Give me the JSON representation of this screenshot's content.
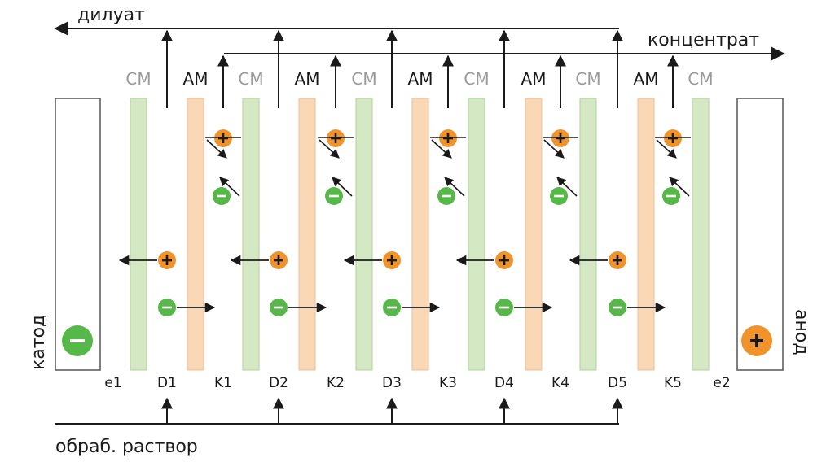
{
  "labels": {
    "diluate": "дилуат",
    "concentrate": "концентрат",
    "feed": "обраб. раствор",
    "cathode": "катод",
    "anode": "анод",
    "cm": "СМ",
    "am": "АМ",
    "minus": "−",
    "plus": "+"
  },
  "chambers": [
    "e1",
    "D1",
    "K1",
    "D2",
    "K2",
    "D3",
    "K3",
    "D4",
    "K4",
    "D5",
    "K5",
    "e2"
  ],
  "colors": {
    "cation_membrane": "#d5e8c4",
    "anion_membrane": "#fad8b5",
    "cation_ion": "#f0932b",
    "anion_ion": "#56b848",
    "line": "#1a1a1a",
    "cm_text": "#9a9a9a"
  }
}
